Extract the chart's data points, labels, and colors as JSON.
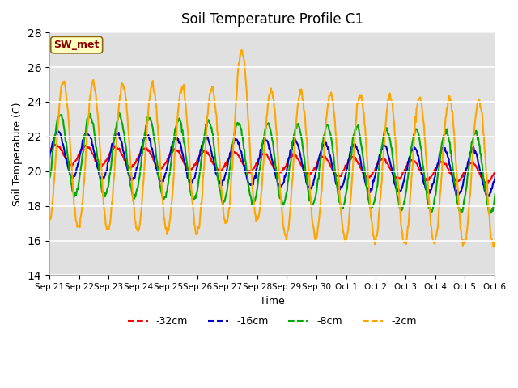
{
  "title": "Soil Temperature Profile C1",
  "xlabel": "Time",
  "ylabel": "Soil Temperature (C)",
  "ylim": [
    14,
    28
  ],
  "yticks": [
    14,
    16,
    18,
    20,
    22,
    24,
    26,
    28
  ],
  "x_labels": [
    "Sep 21",
    "Sep 22",
    "Sep 23",
    "Sep 24",
    "Sep 25",
    "Sep 26",
    "Sep 27",
    "Sep 28",
    "Sep 29",
    "Sep 30",
    "Oct 1",
    "Oct 2",
    "Oct 3",
    "Oct 4",
    "Oct 5",
    "Oct 6"
  ],
  "annotation_text": "SW_met",
  "annotation_color": "#8B0000",
  "annotation_bg": "#FFFFC0",
  "bg_color": "#E0E0E0",
  "legend_entries": [
    "-32cm",
    "-16cm",
    "-8cm",
    "-2cm"
  ],
  "line_colors": [
    "#FF0000",
    "#0000CC",
    "#00AA00",
    "#FFA500"
  ],
  "line_width": 1.5
}
